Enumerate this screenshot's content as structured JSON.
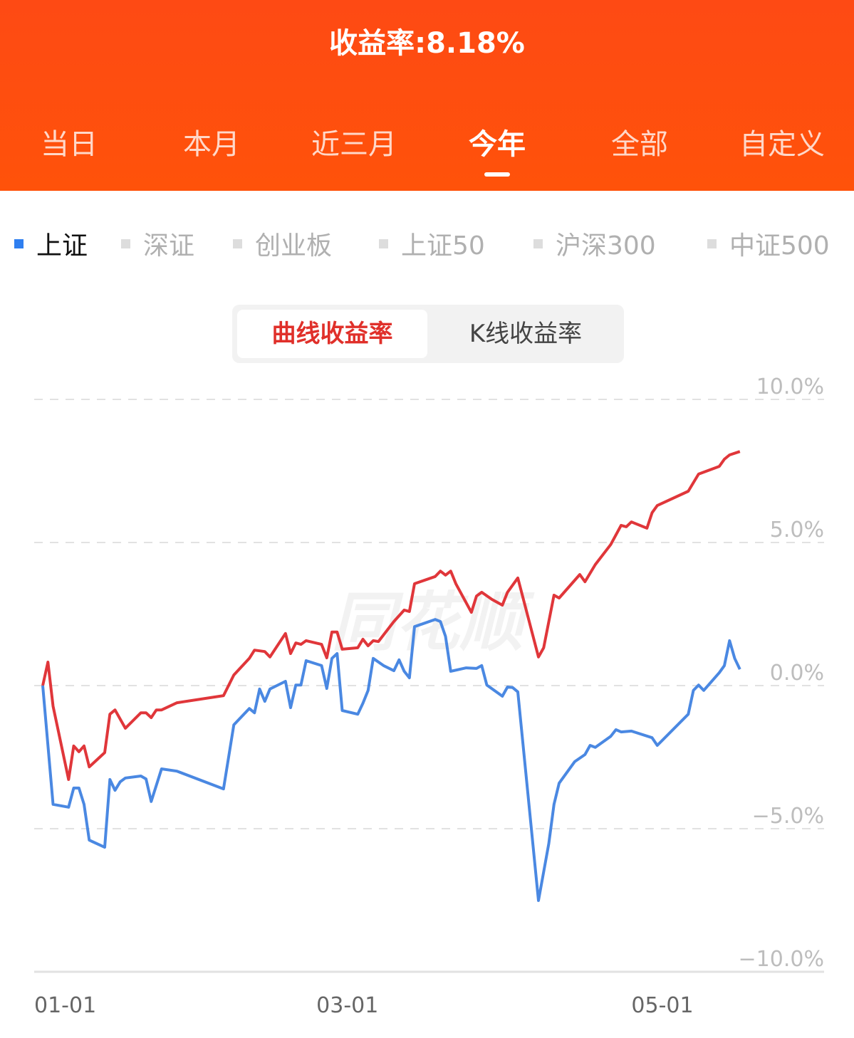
{
  "header": {
    "title": "收益率:8.18%"
  },
  "tabs": [
    {
      "label": "当日"
    },
    {
      "label": "本月"
    },
    {
      "label": "近三月"
    },
    {
      "label": "今年",
      "active": true
    },
    {
      "label": "全部"
    },
    {
      "label": "自定义"
    }
  ],
  "legend": [
    {
      "label": "上证",
      "active": true,
      "color": "#2f7ff0"
    },
    {
      "label": "深证"
    },
    {
      "label": "创业板"
    },
    {
      "label": "上证50"
    },
    {
      "label": "沪深300"
    },
    {
      "label": "中证500"
    }
  ],
  "toggle": {
    "active": "曲线收益率",
    "other": "K线收益率"
  },
  "watermark": "同花顺",
  "chart_data": {
    "type": "line",
    "ylim": [
      -10,
      10
    ],
    "yticks": [
      "10.0%",
      "5.0%",
      "0.0%",
      "−5.0%",
      "−10.0%"
    ],
    "ytick_values": [
      10,
      5,
      0,
      -5,
      -10
    ],
    "xticks": [
      "01-01",
      "03-01",
      "05-01"
    ],
    "grid": true,
    "series": [
      {
        "color": "#e0363a",
        "points": [
          [
            "01-01",
            0
          ],
          [
            "01-02",
            0.82
          ],
          [
            "01-03",
            -0.72
          ],
          [
            "01-06",
            -3.28
          ],
          [
            "01-07",
            -2.11
          ],
          [
            "01-08",
            -2.31
          ],
          [
            "01-09",
            -2.11
          ],
          [
            "01-10",
            -2.84
          ],
          [
            "01-13",
            -2.34
          ],
          [
            "01-14",
            -1.0
          ],
          [
            "01-15",
            -0.85
          ],
          [
            "01-17",
            -1.49
          ],
          [
            "01-20",
            -0.95
          ],
          [
            "01-21",
            -0.95
          ],
          [
            "01-22",
            -1.12
          ],
          [
            "01-23",
            -0.85
          ],
          [
            "01-24",
            -0.85
          ],
          [
            "01-27",
            -0.6
          ],
          [
            "02-05",
            -0.35
          ],
          [
            "02-07",
            0.37
          ],
          [
            "02-10",
            0.95
          ],
          [
            "02-11",
            1.24
          ],
          [
            "02-13",
            1.19
          ],
          [
            "02-14",
            1.0
          ],
          [
            "02-17",
            1.82
          ],
          [
            "02-18",
            1.12
          ],
          [
            "02-19",
            1.49
          ],
          [
            "02-20",
            1.44
          ],
          [
            "02-21",
            1.57
          ],
          [
            "02-24",
            1.44
          ],
          [
            "02-25",
            0.97
          ],
          [
            "02-26",
            1.87
          ],
          [
            "02-27",
            1.87
          ],
          [
            "02-28",
            1.27
          ],
          [
            "03-03",
            1.32
          ],
          [
            "03-04",
            1.62
          ],
          [
            "03-05",
            1.39
          ],
          [
            "03-06",
            1.57
          ],
          [
            "03-07",
            1.54
          ],
          [
            "03-10",
            2.24
          ],
          [
            "03-12",
            2.64
          ],
          [
            "03-13",
            2.59
          ],
          [
            "03-14",
            3.56
          ],
          [
            "03-18",
            3.81
          ],
          [
            "03-19",
            4.0
          ],
          [
            "03-20",
            3.86
          ],
          [
            "03-21",
            4.0
          ],
          [
            "03-22",
            3.56
          ],
          [
            "03-25",
            2.56
          ],
          [
            "03-26",
            3.13
          ],
          [
            "03-27",
            3.26
          ],
          [
            "03-29",
            3.01
          ],
          [
            "03-31",
            2.81
          ],
          [
            "04-01",
            3.26
          ],
          [
            "04-03",
            3.76
          ],
          [
            "04-07",
            1.0
          ],
          [
            "04-08",
            1.32
          ],
          [
            "04-10",
            3.16
          ],
          [
            "04-11",
            3.06
          ],
          [
            "04-15",
            3.88
          ],
          [
            "04-16",
            3.63
          ],
          [
            "04-18",
            4.23
          ],
          [
            "04-21",
            4.93
          ],
          [
            "04-23",
            5.6
          ],
          [
            "04-24",
            5.55
          ],
          [
            "04-25",
            5.72
          ],
          [
            "04-28",
            5.5
          ],
          [
            "04-29",
            6.04
          ],
          [
            "04-30",
            6.29
          ],
          [
            "05-06",
            6.79
          ],
          [
            "05-07",
            7.09
          ],
          [
            "05-08",
            7.39
          ],
          [
            "05-12",
            7.66
          ],
          [
            "05-13",
            7.91
          ],
          [
            "05-14",
            8.06
          ],
          [
            "05-16",
            8.18
          ]
        ]
      },
      {
        "name": "上证",
        "color": "#4a88e2",
        "points": [
          [
            "01-01",
            0
          ],
          [
            "01-03",
            -4.15
          ],
          [
            "01-06",
            -4.25
          ],
          [
            "01-07",
            -3.58
          ],
          [
            "01-08",
            -3.58
          ],
          [
            "01-09",
            -4.15
          ],
          [
            "01-10",
            -5.4
          ],
          [
            "01-13",
            -5.65
          ],
          [
            "01-14",
            -3.28
          ],
          [
            "01-15",
            -3.66
          ],
          [
            "01-16",
            -3.36
          ],
          [
            "01-17",
            -3.23
          ],
          [
            "01-20",
            -3.16
          ],
          [
            "01-21",
            -3.26
          ],
          [
            "01-22",
            -4.05
          ],
          [
            "01-24",
            -2.91
          ],
          [
            "01-27",
            -2.99
          ],
          [
            "02-05",
            -3.61
          ],
          [
            "02-07",
            -1.37
          ],
          [
            "02-10",
            -0.8
          ],
          [
            "02-11",
            -0.95
          ],
          [
            "02-12",
            -0.12
          ],
          [
            "02-13",
            -0.55
          ],
          [
            "02-14",
            -0.12
          ],
          [
            "02-17",
            0.15
          ],
          [
            "02-18",
            -0.77
          ],
          [
            "02-19",
            0.02
          ],
          [
            "02-20",
            0.02
          ],
          [
            "02-21",
            0.87
          ],
          [
            "02-24",
            0.7
          ],
          [
            "02-25",
            -0.1
          ],
          [
            "02-26",
            0.95
          ],
          [
            "02-27",
            1.12
          ],
          [
            "02-28",
            -0.87
          ],
          [
            "03-03",
            -1.0
          ],
          [
            "03-04",
            -0.62
          ],
          [
            "03-05",
            -0.17
          ],
          [
            "03-06",
            0.95
          ],
          [
            "03-08",
            0.7
          ],
          [
            "03-10",
            0.52
          ],
          [
            "03-11",
            0.9
          ],
          [
            "03-12",
            0.5
          ],
          [
            "03-13",
            0.27
          ],
          [
            "03-14",
            2.06
          ],
          [
            "03-18",
            2.31
          ],
          [
            "03-19",
            2.24
          ],
          [
            "03-20",
            1.72
          ],
          [
            "03-21",
            0.5
          ],
          [
            "03-24",
            0.62
          ],
          [
            "03-26",
            0.6
          ],
          [
            "03-27",
            0.7
          ],
          [
            "03-28",
            0.02
          ],
          [
            "03-31",
            -0.37
          ],
          [
            "04-01",
            -0.05
          ],
          [
            "04-02",
            -0.07
          ],
          [
            "04-03",
            -0.22
          ],
          [
            "04-07",
            -7.51
          ],
          [
            "04-09",
            -5.52
          ],
          [
            "04-10",
            -4.15
          ],
          [
            "04-11",
            -3.41
          ],
          [
            "04-14",
            -2.66
          ],
          [
            "04-16",
            -2.41
          ],
          [
            "04-17",
            -2.09
          ],
          [
            "04-18",
            -2.16
          ],
          [
            "04-21",
            -1.77
          ],
          [
            "04-22",
            -1.54
          ],
          [
            "04-23",
            -1.62
          ],
          [
            "04-25",
            -1.59
          ],
          [
            "04-29",
            -1.82
          ],
          [
            "04-30",
            -2.09
          ],
          [
            "05-06",
            -1.0
          ],
          [
            "05-07",
            -0.17
          ],
          [
            "05-08",
            0.02
          ],
          [
            "05-09",
            -0.17
          ],
          [
            "05-12",
            0.45
          ],
          [
            "05-13",
            0.7
          ],
          [
            "05-14",
            1.57
          ],
          [
            "05-15",
            0.95
          ],
          [
            "05-16",
            0.57
          ]
        ]
      }
    ]
  }
}
